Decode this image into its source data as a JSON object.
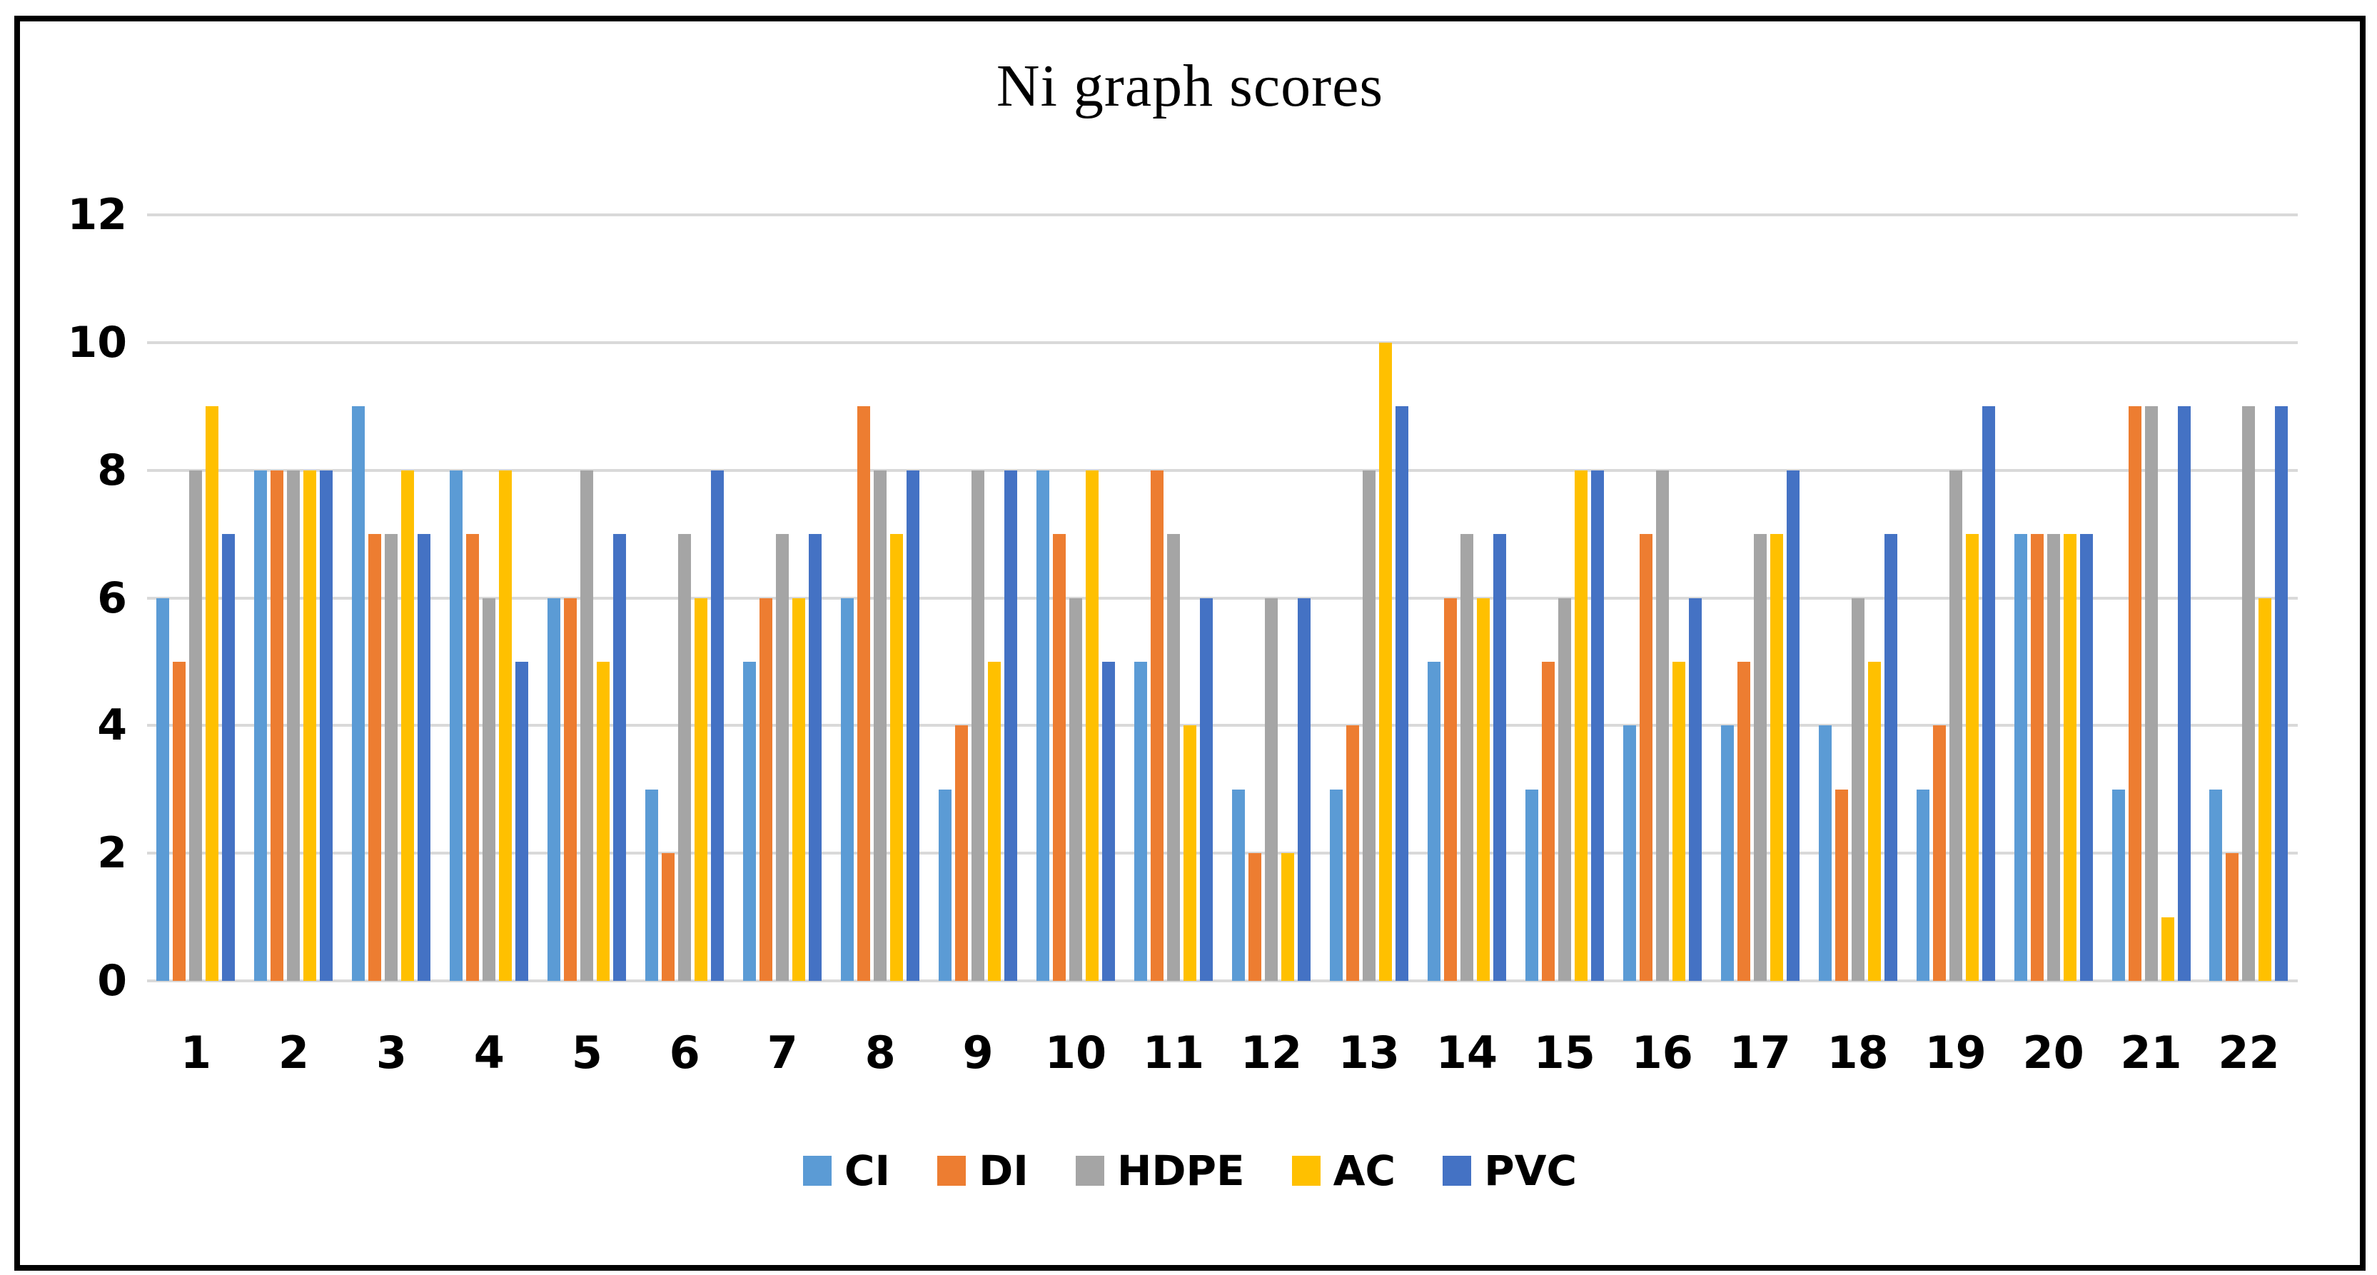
{
  "chart_data": {
    "type": "bar",
    "title": "Ni graph scores",
    "categories": [
      "1",
      "2",
      "3",
      "4",
      "5",
      "6",
      "7",
      "8",
      "9",
      "10",
      "11",
      "12",
      "13",
      "14",
      "15",
      "16",
      "17",
      "18",
      "19",
      "20",
      "21",
      "22"
    ],
    "series": [
      {
        "name": "CI",
        "color": "#5B9BD5",
        "values": [
          6,
          8,
          9,
          8,
          6,
          3,
          5,
          6,
          3,
          8,
          5,
          3,
          3,
          5,
          3,
          4,
          4,
          4,
          3,
          7,
          3,
          3
        ]
      },
      {
        "name": "DI",
        "color": "#ED7D31",
        "values": [
          5,
          8,
          7,
          7,
          6,
          2,
          6,
          9,
          4,
          7,
          8,
          2,
          4,
          6,
          5,
          7,
          5,
          3,
          4,
          7,
          9,
          2
        ]
      },
      {
        "name": "HDPE",
        "color": "#A5A5A5",
        "values": [
          8,
          8,
          7,
          6,
          8,
          7,
          7,
          8,
          8,
          6,
          7,
          6,
          8,
          7,
          6,
          8,
          7,
          6,
          8,
          7,
          9,
          9
        ]
      },
      {
        "name": "AC",
        "color": "#FFC000",
        "values": [
          9,
          8,
          8,
          8,
          5,
          6,
          6,
          7,
          5,
          8,
          4,
          2,
          10,
          6,
          8,
          5,
          7,
          5,
          7,
          7,
          1,
          6
        ]
      },
      {
        "name": "PVC",
        "color": "#4472C4",
        "values": [
          7,
          8,
          7,
          5,
          7,
          8,
          7,
          8,
          8,
          5,
          6,
          6,
          9,
          7,
          8,
          6,
          8,
          7,
          9,
          7,
          9,
          9
        ]
      }
    ],
    "xlabel": "",
    "ylabel": "",
    "ylim": [
      0,
      12
    ],
    "yticks": [
      0,
      2,
      4,
      6,
      8,
      10,
      12
    ],
    "grid": "horizontal",
    "legend_position": "bottom"
  },
  "colors": {
    "background": "#FFFFFF",
    "border": "#000000",
    "gridline": "#D9D9D9",
    "text": "#000000"
  }
}
